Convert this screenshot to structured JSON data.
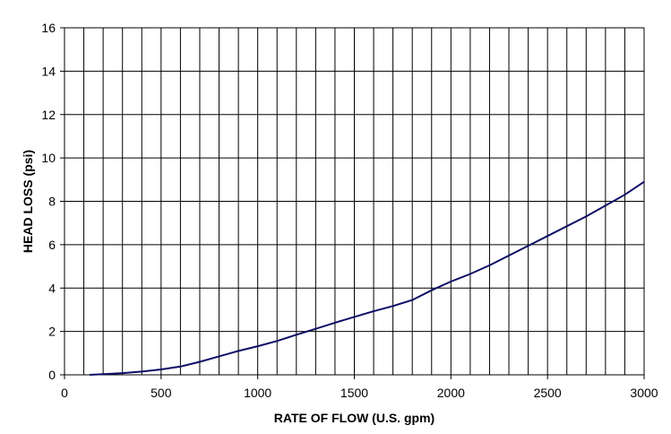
{
  "chart_data": {
    "type": "line",
    "xlabel": "RATE OF FLOW (U.S. gpm)",
    "ylabel": "HEAD LOSS (psi)",
    "xlim": [
      0,
      3000
    ],
    "ylim": [
      0,
      16
    ],
    "x_ticks": [
      0,
      500,
      1000,
      1500,
      2000,
      2500,
      3000
    ],
    "y_ticks": [
      0,
      2,
      4,
      6,
      8,
      10,
      12,
      14,
      16
    ],
    "x_minor_grid_step": 100,
    "grid": true,
    "line_color": "#0d0d66",
    "series": [
      {
        "x": [
          130,
          200,
          300,
          400,
          500,
          600,
          700,
          800,
          900,
          1000,
          1100,
          1200,
          1300,
          1400,
          1500,
          1600,
          1700,
          1800,
          1900,
          2000,
          2100,
          2200,
          2300,
          2400,
          2500,
          2600,
          2700,
          2800,
          2900,
          3000
        ],
        "values": [
          0.0,
          0.03,
          0.08,
          0.15,
          0.25,
          0.38,
          0.6,
          0.85,
          1.1,
          1.32,
          1.56,
          1.85,
          2.12,
          2.4,
          2.67,
          2.93,
          3.17,
          3.45,
          3.9,
          4.3,
          4.65,
          5.05,
          5.5,
          5.95,
          6.4,
          6.85,
          7.3,
          7.8,
          8.3,
          8.9
        ]
      }
    ]
  }
}
